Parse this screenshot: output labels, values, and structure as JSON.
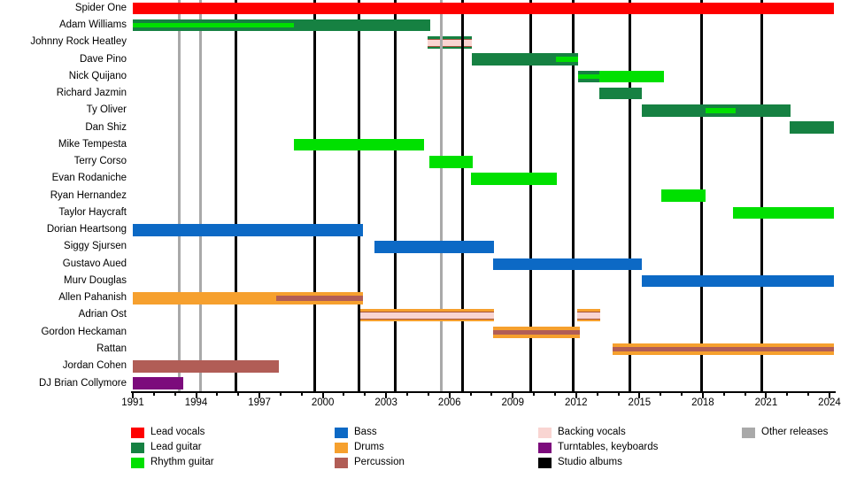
{
  "chart_data": {
    "type": "bar",
    "subtype": "band-membership-timeline-gantt",
    "title": "",
    "x_axis": {
      "min": 1991,
      "max": 2024,
      "major_ticks": [
        1991,
        1994,
        1997,
        2000,
        2003,
        2006,
        2009,
        2012,
        2015,
        2018,
        2021,
        2024
      ],
      "minor_tick_step": 1,
      "present_end": 2024.2
    },
    "colors": {
      "lead_vocals": "#fe0000",
      "lead_guitar": "#168142",
      "rhythm_guitar": "#00e000",
      "bass": "#0c69c5",
      "drums": "#f6a02e",
      "percussion": "#b15d56",
      "backing_vocals": "#f9d5d2",
      "turntables_keyboards": "#7c0b7c",
      "studio_albums": "#000000",
      "other_releases": "#a9a9a9"
    },
    "members": [
      {
        "name": "Spider One",
        "segments": [
          {
            "role": "lead_vocals",
            "start": 1991,
            "end": 2024.2
          }
        ]
      },
      {
        "name": "Adam Williams",
        "segments": [
          {
            "role": "lead_guitar",
            "start": 1991,
            "end": 2005.1,
            "core": {
              "role": "rhythm_guitar",
              "start": 1991,
              "end": 1998.65
            }
          }
        ]
      },
      {
        "name": "Johnny Rock Heatley",
        "segments": [
          {
            "role": "lead_guitar",
            "start": 2004.95,
            "end": 2007.05,
            "core": {
              "role": "backing_vocals"
            },
            "behind_lines": true
          }
        ]
      },
      {
        "name": "Dave Pino",
        "segments": [
          {
            "role": "lead_guitar",
            "start": 2007.05,
            "end": 2012.1,
            "core": {
              "role": "rhythm_guitar",
              "start": 2011.05,
              "end": 2012.1
            }
          }
        ]
      },
      {
        "name": "Nick Quijano",
        "segments": [
          {
            "role": "lead_guitar",
            "start": 2012.1,
            "end": 2013.1,
            "core": {
              "role": "rhythm_guitar"
            }
          },
          {
            "role": "rhythm_guitar",
            "start": 2013.1,
            "end": 2016.15
          }
        ]
      },
      {
        "name": "Richard Jazmin",
        "segments": [
          {
            "role": "lead_guitar",
            "start": 2013.1,
            "end": 2015.1
          }
        ]
      },
      {
        "name": "Ty Oliver",
        "segments": [
          {
            "role": "lead_guitar",
            "start": 2015.1,
            "end": 2022.15,
            "core": {
              "role": "rhythm_guitar",
              "start": 2018.13,
              "end": 2019.55
            }
          }
        ]
      },
      {
        "name": "Dan Shiz",
        "segments": [
          {
            "role": "lead_guitar",
            "start": 2022.1,
            "end": 2024.2
          }
        ]
      },
      {
        "name": "Mike Tempesta",
        "segments": [
          {
            "role": "rhythm_guitar",
            "start": 1998.65,
            "end": 2004.8
          }
        ]
      },
      {
        "name": "Terry Corso",
        "segments": [
          {
            "role": "rhythm_guitar",
            "start": 2005.05,
            "end": 2007.1
          }
        ]
      },
      {
        "name": "Evan Rodaniche",
        "segments": [
          {
            "role": "rhythm_guitar",
            "start": 2007.0,
            "end": 2011.1
          }
        ]
      },
      {
        "name": "Ryan Hernandez",
        "segments": [
          {
            "role": "rhythm_guitar",
            "start": 2016.05,
            "end": 2018.15
          }
        ]
      },
      {
        "name": "Taylor Haycraft",
        "segments": [
          {
            "role": "rhythm_guitar",
            "start": 2019.45,
            "end": 2024.2
          }
        ]
      },
      {
        "name": "Dorian Heartsong",
        "segments": [
          {
            "role": "bass",
            "start": 1991,
            "end": 2001.9
          }
        ]
      },
      {
        "name": "Siggy Sjursen",
        "segments": [
          {
            "role": "bass",
            "start": 2002.45,
            "end": 2008.1
          }
        ]
      },
      {
        "name": "Gustavo Aued",
        "segments": [
          {
            "role": "bass",
            "start": 2008.05,
            "end": 2015.1
          }
        ]
      },
      {
        "name": "Murv Douglas",
        "segments": [
          {
            "role": "bass",
            "start": 2015.1,
            "end": 2024.2
          }
        ]
      },
      {
        "name": "Allen Pahanish",
        "segments": [
          {
            "role": "drums",
            "start": 1991,
            "end": 2001.9,
            "core": {
              "role": "percussion",
              "start": 1997.8,
              "end": 2001.9
            }
          }
        ]
      },
      {
        "name": "Adrian Ost",
        "segments": [
          {
            "role": "drums",
            "start": 2001.78,
            "end": 2008.1,
            "core": {
              "role": "backing_vocals"
            }
          },
          {
            "role": "drums",
            "start": 2012.05,
            "end": 2013.15,
            "core": {
              "role": "backing_vocals"
            }
          }
        ]
      },
      {
        "name": "Gordon Heckaman",
        "segments": [
          {
            "role": "drums",
            "start": 2008.05,
            "end": 2012.18,
            "core": {
              "role": "percussion"
            }
          }
        ]
      },
      {
        "name": "Rattan",
        "segments": [
          {
            "role": "drums",
            "start": 2013.73,
            "end": 2024.2,
            "core": {
              "role": "percussion"
            }
          }
        ]
      },
      {
        "name": "Jordan Cohen",
        "segments": [
          {
            "role": "percussion",
            "start": 1991,
            "end": 1997.9
          }
        ]
      },
      {
        "name": "DJ Brian Collymore",
        "segments": [
          {
            "role": "turntables_keyboards",
            "start": 1991,
            "end": 1993.4
          }
        ]
      }
    ],
    "events": {
      "studio_albums": [
        1995.9,
        1999.6,
        2001.7,
        2003.45,
        2006.6,
        2009.85,
        2011.85,
        2014.55,
        2017.95,
        2020.8
      ],
      "other_releases": [
        1993.2,
        1994.2,
        2005.6
      ]
    },
    "legend_columns": [
      [
        {
          "label": "Lead vocals",
          "role": "lead_vocals"
        },
        {
          "label": "Lead guitar",
          "role": "lead_guitar"
        },
        {
          "label": "Rhythm guitar",
          "role": "rhythm_guitar"
        }
      ],
      [
        {
          "label": "Bass",
          "role": "bass"
        },
        {
          "label": "Drums",
          "role": "drums"
        },
        {
          "label": "Percussion",
          "role": "percussion"
        }
      ],
      [
        {
          "label": "Backing vocals",
          "role": "backing_vocals"
        },
        {
          "label": "Turntables, keyboards",
          "role": "turntables_keyboards"
        },
        {
          "label": "Studio albums",
          "role": "studio_albums"
        }
      ],
      [
        {
          "label": "Other releases",
          "role": "other_releases"
        }
      ]
    ]
  }
}
